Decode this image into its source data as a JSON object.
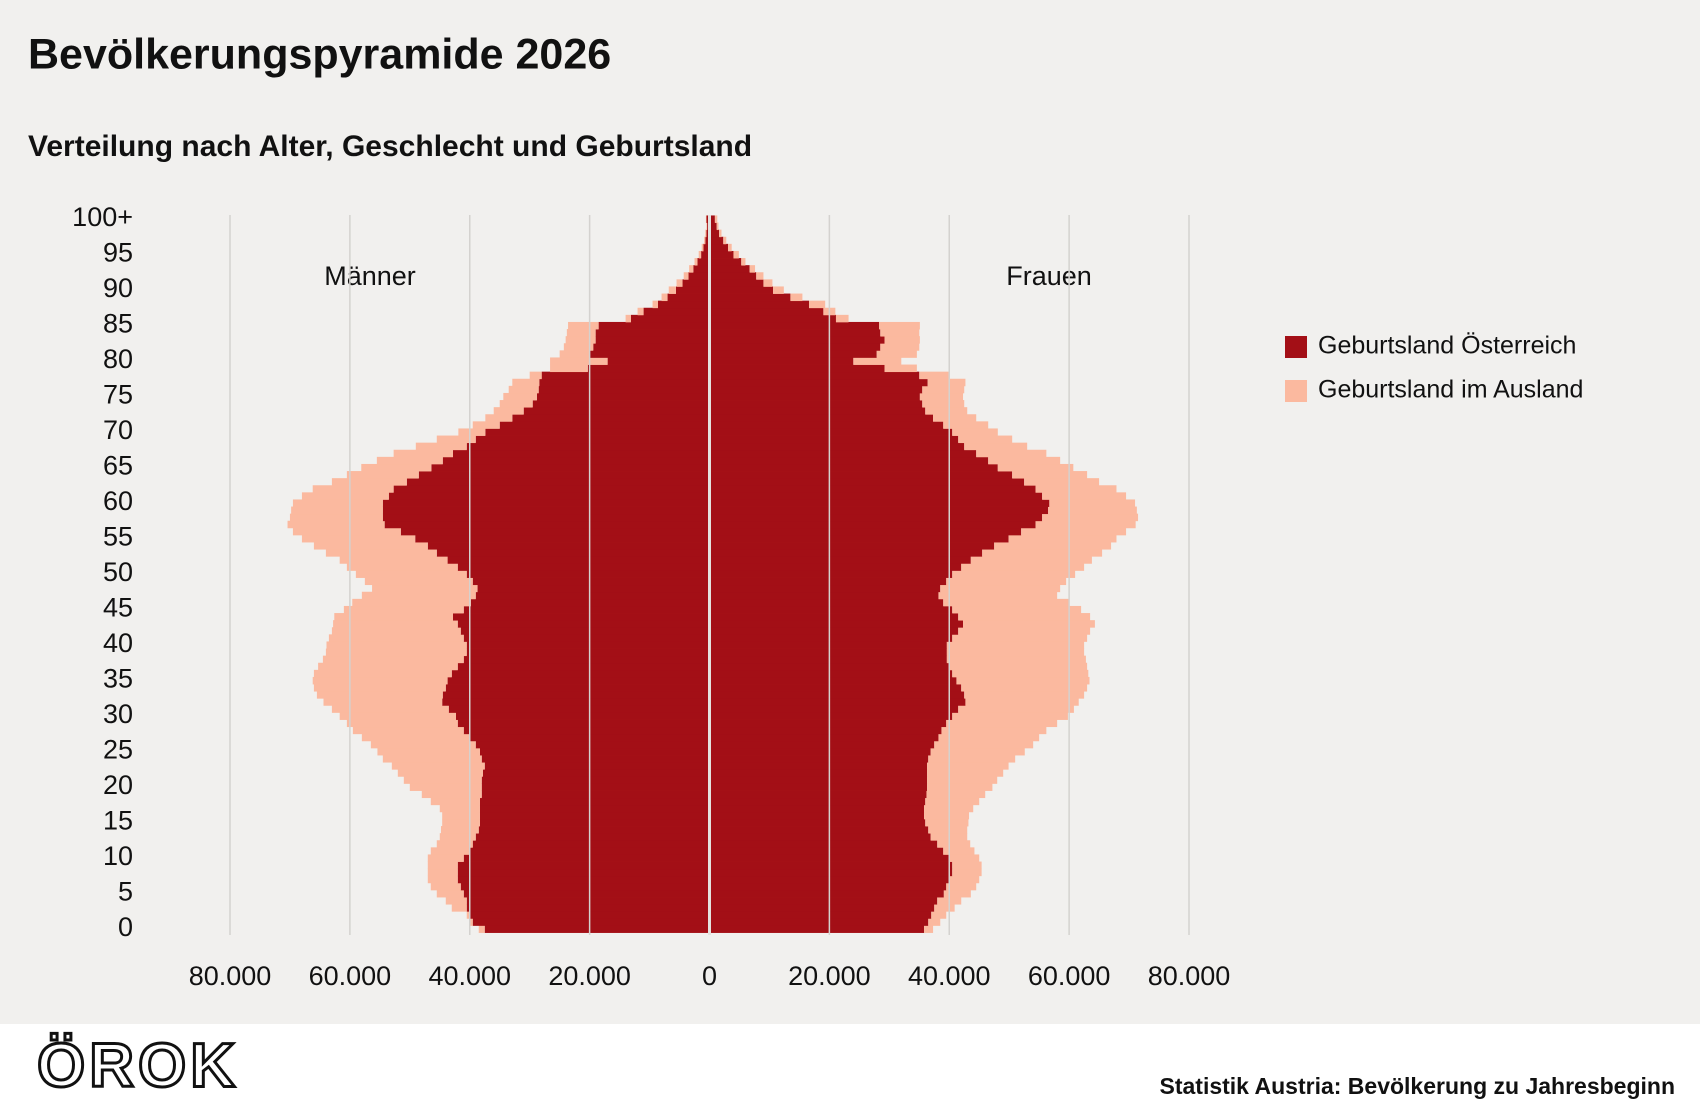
{
  "chart_data": {
    "type": "pyramid",
    "title": "Bevölkerungspyramide 2026",
    "subtitle": "Verteilung nach Alter, Geschlecht und Geburtsland",
    "source": "Statistik Austria: Bevölkerung zu Jahresbeginn",
    "logo": "ÖROK",
    "groups": [
      {
        "label": "Männer",
        "side": "left"
      },
      {
        "label": "Frauen",
        "side": "right"
      }
    ],
    "categories": [
      "0",
      null,
      null,
      null,
      null,
      "5",
      null,
      null,
      null,
      null,
      "10",
      null,
      null,
      null,
      null,
      "15",
      null,
      null,
      null,
      null,
      "20",
      null,
      null,
      null,
      null,
      "25",
      null,
      null,
      null,
      null,
      "30",
      null,
      null,
      null,
      null,
      "35",
      null,
      null,
      null,
      null,
      "40",
      null,
      null,
      null,
      null,
      "45",
      null,
      null,
      null,
      null,
      "50",
      null,
      null,
      null,
      null,
      "55",
      null,
      null,
      null,
      null,
      "60",
      null,
      null,
      null,
      null,
      "65",
      null,
      null,
      null,
      null,
      "70",
      null,
      null,
      null,
      null,
      "75",
      null,
      null,
      null,
      null,
      "80",
      null,
      null,
      null,
      null,
      "85",
      null,
      null,
      null,
      null,
      "90",
      null,
      null,
      null,
      null,
      "95",
      null,
      null,
      null,
      null,
      "100+"
    ],
    "series": [
      {
        "name": "Geburtsland Österreich",
        "color": "#a30f16",
        "values": [
          [
            37500,
            39500,
            40000,
            40500,
            40500,
            41000,
            41500,
            42000,
            42000,
            42000,
            41000,
            40000,
            39500,
            39000,
            38500,
            38300,
            38300,
            38300,
            38300,
            38000,
            38000,
            38000,
            37800,
            37500,
            38000,
            38300,
            39000,
            40000,
            41000,
            42000,
            42300,
            43500,
            44600,
            44500,
            44000,
            43700,
            43000,
            42000,
            41000,
            40500,
            40500,
            41000,
            41500,
            42000,
            42800,
            41000,
            39800,
            39000,
            38700,
            39500,
            40500,
            42000,
            43700,
            45500,
            47000,
            49100,
            51500,
            54200,
            54500,
            54500,
            54500,
            53500,
            52700,
            50500,
            48500,
            46400,
            44500,
            42800,
            40500,
            39000,
            37400,
            35000,
            32900,
            31000,
            29500,
            28800,
            28500,
            28400,
            28000,
            20300,
            17000,
            20000,
            19400,
            19000,
            19000,
            18500,
            13100,
            11000,
            8600,
            7000,
            5600,
            4500,
            3500,
            2700,
            2000,
            1400,
            1000,
            700,
            500,
            400,
            500
          ],
          [
            35800,
            36500,
            37000,
            37500,
            38000,
            39100,
            39500,
            40000,
            40500,
            40500,
            40000,
            39000,
            38000,
            36900,
            36500,
            36000,
            35800,
            35800,
            36000,
            36200,
            36300,
            36300,
            36300,
            36300,
            36500,
            36900,
            37500,
            38200,
            38700,
            39500,
            40500,
            41500,
            42700,
            42500,
            42000,
            41200,
            40500,
            40000,
            39600,
            39600,
            39600,
            40500,
            41500,
            42300,
            41500,
            40500,
            39000,
            38200,
            38500,
            39500,
            40500,
            42000,
            43600,
            45500,
            47500,
            49900,
            52000,
            54400,
            55500,
            56500,
            56700,
            55500,
            54400,
            52500,
            50500,
            48100,
            46500,
            44500,
            42500,
            41500,
            40500,
            39000,
            37300,
            36000,
            35500,
            35100,
            35500,
            36400,
            35000,
            29200,
            24000,
            27900,
            28500,
            29200,
            28500,
            28300,
            21100,
            19000,
            16600,
            13500,
            10600,
            9000,
            7800,
            6700,
            5300,
            4000,
            3100,
            2300,
            1600,
            1200,
            900
          ]
        ]
      },
      {
        "name": "Geburtsland im Ausland",
        "color": "#fbb99f",
        "values": [
          [
            1000,
            500,
            500,
            2500,
            3500,
            4500,
            5000,
            5000,
            5000,
            5000,
            6000,
            6500,
            6000,
            6000,
            6300,
            6300,
            6300,
            6700,
            8200,
            10000,
            12000,
            13000,
            14200,
            15500,
            16500,
            17100,
            17500,
            18000,
            18500,
            18500,
            19400,
            19500,
            19800,
            21000,
            22000,
            22500,
            23000,
            23300,
            23500,
            23500,
            23400,
            22500,
            21500,
            20800,
            19800,
            20000,
            19800,
            19000,
            17600,
            18000,
            18500,
            18500,
            18000,
            18500,
            19000,
            18900,
            18000,
            16200,
            15500,
            15300,
            15000,
            14500,
            13500,
            12500,
            12000,
            11700,
            11000,
            9900,
            8500,
            6500,
            4500,
            4500,
            4500,
            5000,
            5500,
            5600,
            5000,
            4500,
            2000,
            6300,
            9600,
            5000,
            4900,
            5000,
            4800,
            5100,
            900,
            1000,
            900,
            1000,
            1200,
            1000,
            800,
            700,
            500,
            400,
            300,
            200,
            200,
            100,
            100
          ],
          [
            1500,
            2000,
            2500,
            3400,
            4000,
            4500,
            5000,
            5000,
            4900,
            4900,
            5000,
            5200,
            5500,
            6100,
            6500,
            7200,
            7500,
            8200,
            9000,
            9800,
            10900,
            11700,
            12700,
            13600,
            14500,
            15700,
            16500,
            16800,
            17500,
            18500,
            19300,
            19300,
            18900,
            20000,
            21000,
            22200,
            22700,
            23000,
            23200,
            22900,
            22900,
            22500,
            22000,
            22000,
            22000,
            21500,
            21000,
            19800,
            20000,
            20000,
            20500,
            20500,
            20200,
            20000,
            19500,
            18000,
            17500,
            16700,
            16000,
            14800,
            14300,
            14000,
            13500,
            12500,
            12500,
            12600,
            12000,
            11700,
            10500,
            9000,
            7600,
            7500,
            7200,
            7000,
            7000,
            7200,
            7000,
            6300,
            5000,
            5400,
            8000,
            6700,
            6500,
            5900,
            6500,
            6800,
            2100,
            2000,
            2700,
            2000,
            1800,
            1500,
            1200,
            900,
            700,
            900,
            600,
            500,
            400,
            300,
            400
          ]
        ]
      }
    ],
    "xlim": [
      -80000,
      80000
    ],
    "xticks": [
      {
        "value": -80000,
        "label": "80.000"
      },
      {
        "value": -60000,
        "label": "60.000"
      },
      {
        "value": -40000,
        "label": "40.000"
      },
      {
        "value": -20000,
        "label": "20.000"
      },
      0,
      {
        "value": 20000,
        "label": "20.000"
      },
      {
        "value": 40000,
        "label": "40.000"
      },
      {
        "value": 60000,
        "label": "60.000"
      },
      {
        "value": 80000,
        "label": "80.000"
      }
    ],
    "grid": true
  }
}
